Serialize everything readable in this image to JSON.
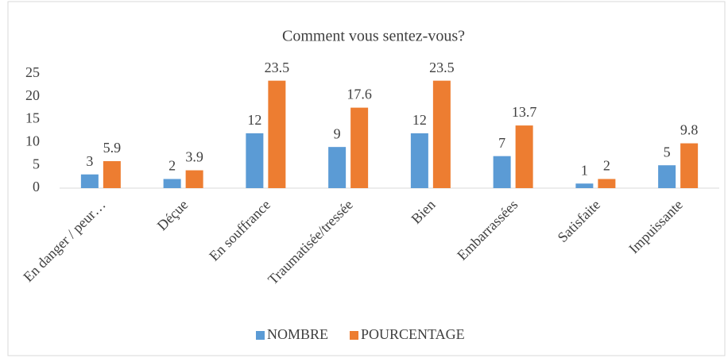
{
  "chart_data": {
    "type": "bar",
    "title": "Comment vous sentez-vous?",
    "categories": [
      "En danger / peur…",
      "Déçue",
      "En souffrance",
      "Traumatisée/tressée",
      "Bien",
      "Embarrassées",
      "Satisfaite",
      "Impuissante"
    ],
    "series": [
      {
        "name": "NOMBRE",
        "color": "#5b9bd5",
        "values": [
          3,
          2,
          12,
          9,
          12,
          7,
          1,
          5
        ]
      },
      {
        "name": "POURCENTAGE",
        "color": "#ed7d31",
        "values": [
          5.9,
          3.9,
          23.5,
          17.6,
          23.5,
          13.7,
          2,
          9.8
        ]
      }
    ],
    "ylim": [
      0,
      25
    ],
    "yticks": [
      0,
      5,
      10,
      15,
      20,
      25
    ],
    "grid": false,
    "legend": "bottom"
  }
}
